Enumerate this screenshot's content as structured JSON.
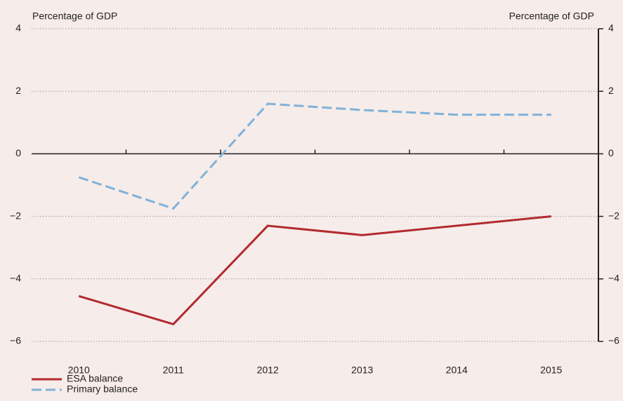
{
  "chart_data": {
    "type": "line",
    "y_label": "Percentage of GDP",
    "y2_label": "Percentage of GDP",
    "categories": [
      "2010",
      "2011",
      "2012",
      "2013",
      "2014",
      "2015"
    ],
    "series": [
      {
        "name": "ESA balance",
        "color": "#b22a2e",
        "dashed": false,
        "values": [
          -4.55,
          -5.45,
          -2.3,
          -2.6,
          -2.3,
          -2.0
        ]
      },
      {
        "name": "Primary balance",
        "color": "#7fb2da",
        "dashed": true,
        "values": [
          -0.75,
          -1.75,
          1.6,
          1.4,
          1.25,
          1.25
        ]
      }
    ],
    "ylim": [
      -6,
      4
    ],
    "yticks": [
      {
        "value": -6,
        "label": "−6"
      },
      {
        "value": -4,
        "label": "−4"
      },
      {
        "value": -2,
        "label": "−2"
      },
      0,
      2,
      4
    ],
    "y2lim": [
      -6,
      4
    ],
    "y2ticks": [
      {
        "value": -6,
        "label": "−6"
      },
      {
        "value": -4,
        "label": "−4"
      },
      {
        "value": -2,
        "label": "−2"
      },
      0,
      2,
      4
    ],
    "grid": true
  }
}
